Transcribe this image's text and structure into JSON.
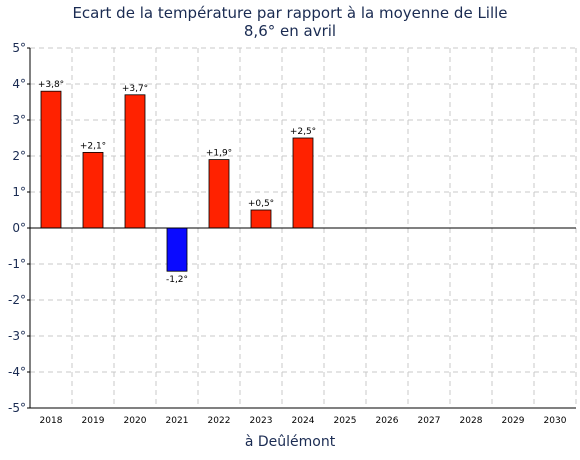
{
  "chart_data": {
    "type": "bar",
    "title": "Ecart de la température par rapport à la moyenne de Lille",
    "subtitle": "8,6° en avril",
    "xlabel": "à Deûlémont",
    "ylabel": "",
    "categories": [
      "2018",
      "2019",
      "2020",
      "2021",
      "2022",
      "2023",
      "2024",
      "2025",
      "2026",
      "2027",
      "2028",
      "2029",
      "2030"
    ],
    "values": [
      3.8,
      2.1,
      3.7,
      -1.2,
      1.9,
      0.5,
      2.5,
      null,
      null,
      null,
      null,
      null,
      null
    ],
    "data_labels": [
      "+3,8°",
      "+2,1°",
      "+3,7°",
      "-1,2°",
      "+1,9°",
      "+0,5°",
      "+2,5°",
      "",
      "",
      "",
      "",
      "",
      ""
    ],
    "ylim": [
      -5,
      5
    ],
    "yticks": [
      5,
      4,
      3,
      2,
      1,
      0,
      -1,
      -2,
      -3,
      -4,
      -5
    ],
    "ytick_labels": [
      "5°",
      "4°",
      "3°",
      "2°",
      "1°",
      "0°",
      "-1°",
      "-2°",
      "-3°",
      "-4°",
      "-5°"
    ],
    "grid": true,
    "colors": {
      "positive": "#ff2200",
      "negative": "#0a0aff",
      "grid": "#c8c8c8",
      "axis": "#000000",
      "text": "#1a2b52"
    }
  }
}
